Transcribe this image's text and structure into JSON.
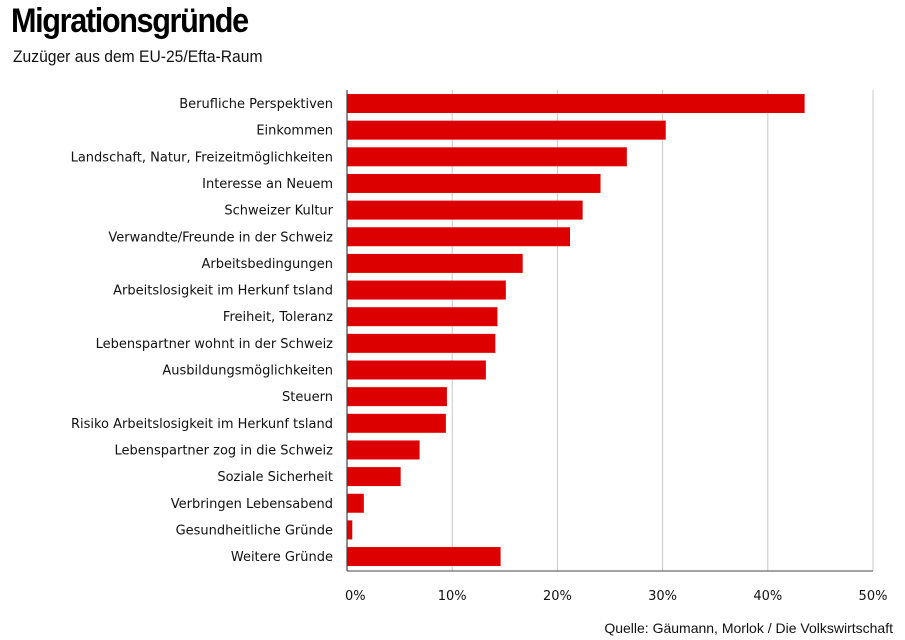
{
  "title": "Migrationsgründe",
  "subtitle": "Zuzüger aus dem EU-25/Efta-Raum",
  "source": "Quelle: Gäumann, Morlok / Die Volkswirtschaft",
  "colors": {
    "bar": "#dd0000",
    "grid": "#c8c8c8",
    "axis": "#444444"
  },
  "chart_data": {
    "type": "bar",
    "orientation": "horizontal",
    "title": "Migrationsgründe",
    "subtitle": "Zuzüger aus dem EU-25/Efta-Raum",
    "categories": [
      "Berufliche Perspektiven",
      "Einkommen",
      "Landschaft, Natur, Freizeitmöglichkeiten",
      "Interesse an Neuem",
      "Schweizer Kultur",
      "Verwandte/Freunde in der Schweiz",
      "Arbeitsbedingungen",
      "Arbeitslosigkeit im Herkunf tsland",
      "Freiheit, Toleranz",
      "Lebenspartner wohnt in der Schweiz",
      "Ausbildungsmöglichkeiten",
      "Steuern",
      "Risiko Arbeitslosigkeit im Herkunf tsland",
      "Lebenspartner zog in die Schweiz",
      "Soziale Sicherheit",
      "Verbringen Lebensabend",
      "Gesundheitliche Gründe",
      "Weitere Gründe"
    ],
    "values": [
      43.5,
      30.3,
      26.6,
      24.1,
      22.4,
      21.2,
      16.7,
      15.1,
      14.3,
      14.1,
      13.2,
      9.5,
      9.4,
      6.9,
      5.1,
      1.6,
      0.5,
      14.6
    ],
    "unit": "%",
    "xlim": [
      0,
      50
    ],
    "xticks": [
      "0%",
      "10%",
      "20%",
      "30%",
      "40%",
      "50%"
    ],
    "grid": true,
    "legend": "none"
  }
}
